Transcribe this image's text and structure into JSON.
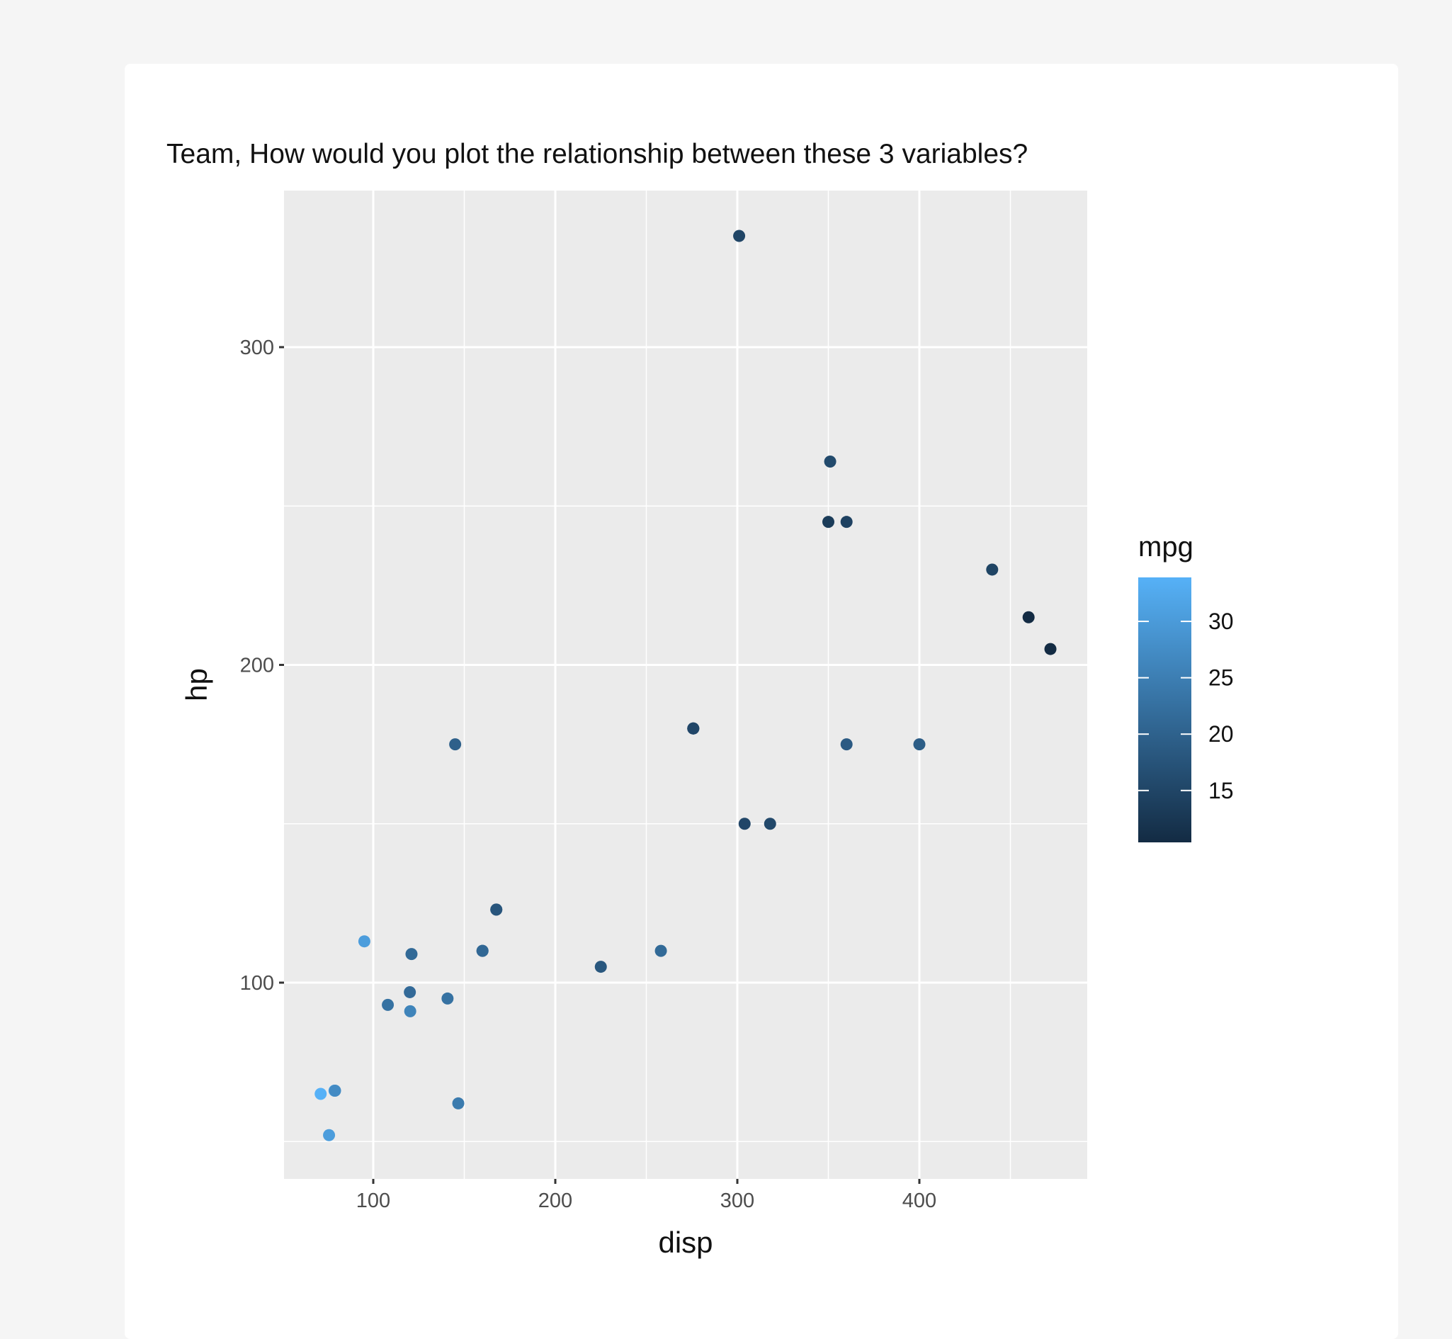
{
  "post": {
    "text": "Team, How would you plot the relationship between these 3 variables?"
  },
  "chart_data": {
    "type": "scatter",
    "title": "",
    "xlabel": "disp",
    "ylabel": "hp",
    "xlim": [
      51,
      492
    ],
    "ylim": [
      38,
      349
    ],
    "xticks": [
      100,
      200,
      300,
      400
    ],
    "yticks": [
      100,
      200,
      300
    ],
    "grid": true,
    "legend": {
      "title": "mpg",
      "placement": "right",
      "ticks": [
        15,
        20,
        25,
        30
      ],
      "range": [
        10.4,
        33.9
      ],
      "low_color": "#132B43",
      "high_color": "#56B1F7"
    },
    "panel_background": "#EBEBEB",
    "points": [
      {
        "disp": 160,
        "hp": 110,
        "mpg": 21
      },
      {
        "disp": 160,
        "hp": 110,
        "mpg": 21
      },
      {
        "disp": 108,
        "hp": 93,
        "mpg": 22.8
      },
      {
        "disp": 258,
        "hp": 110,
        "mpg": 21.4
      },
      {
        "disp": 360,
        "hp": 175,
        "mpg": 18.7
      },
      {
        "disp": 225,
        "hp": 105,
        "mpg": 18.1
      },
      {
        "disp": 360,
        "hp": 245,
        "mpg": 14.3
      },
      {
        "disp": 146.7,
        "hp": 62,
        "mpg": 24.4
      },
      {
        "disp": 140.8,
        "hp": 95,
        "mpg": 22.8
      },
      {
        "disp": 167.6,
        "hp": 123,
        "mpg": 19.2
      },
      {
        "disp": 167.6,
        "hp": 123,
        "mpg": 17.8
      },
      {
        "disp": 275.8,
        "hp": 180,
        "mpg": 16.4
      },
      {
        "disp": 275.8,
        "hp": 180,
        "mpg": 17.3
      },
      {
        "disp": 275.8,
        "hp": 180,
        "mpg": 15.2
      },
      {
        "disp": 472,
        "hp": 205,
        "mpg": 10.4
      },
      {
        "disp": 460,
        "hp": 215,
        "mpg": 10.4
      },
      {
        "disp": 440,
        "hp": 230,
        "mpg": 14.7
      },
      {
        "disp": 78.7,
        "hp": 66,
        "mpg": 32.4
      },
      {
        "disp": 75.7,
        "hp": 52,
        "mpg": 30.4
      },
      {
        "disp": 71.1,
        "hp": 65,
        "mpg": 33.9
      },
      {
        "disp": 120.1,
        "hp": 97,
        "mpg": 21.5
      },
      {
        "disp": 318,
        "hp": 150,
        "mpg": 15.5
      },
      {
        "disp": 304,
        "hp": 150,
        "mpg": 15.2
      },
      {
        "disp": 350,
        "hp": 245,
        "mpg": 13.3
      },
      {
        "disp": 400,
        "hp": 175,
        "mpg": 19.2
      },
      {
        "disp": 79,
        "hp": 66,
        "mpg": 27.3
      },
      {
        "disp": 120.3,
        "hp": 91,
        "mpg": 26
      },
      {
        "disp": 95.1,
        "hp": 113,
        "mpg": 30.4
      },
      {
        "disp": 351,
        "hp": 264,
        "mpg": 15.8
      },
      {
        "disp": 145,
        "hp": 175,
        "mpg": 19.7
      },
      {
        "disp": 301,
        "hp": 335,
        "mpg": 15
      },
      {
        "disp": 121,
        "hp": 109,
        "mpg": 21.4
      }
    ]
  }
}
